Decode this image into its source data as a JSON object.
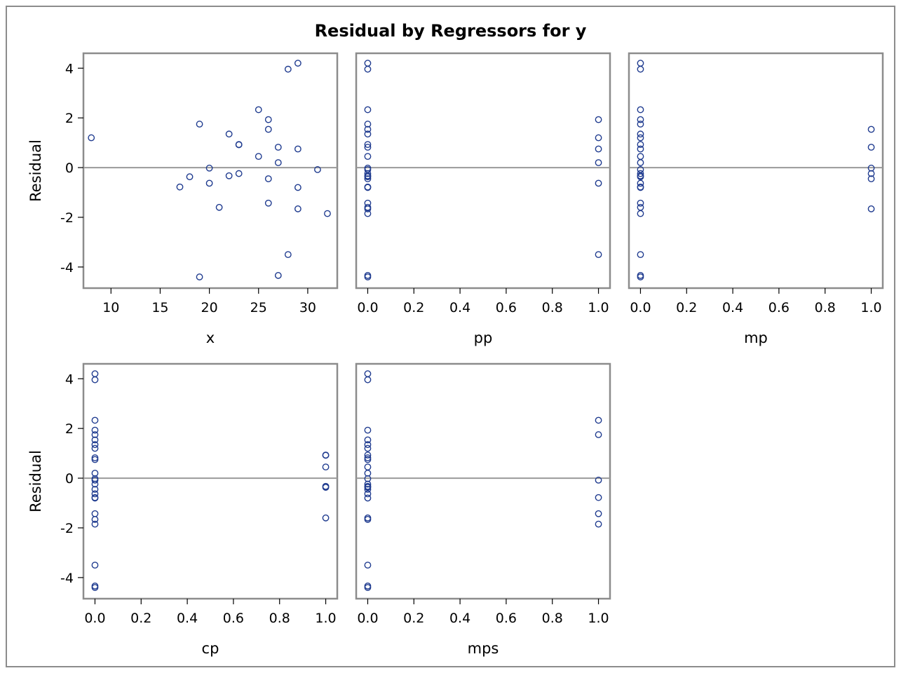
{
  "title": "Residual by Regressors for y",
  "colors": {
    "marker": "#1f3b8f",
    "frame": "#8c8c8c",
    "refline": "#9a9a9a"
  },
  "ylabel": "Residual",
  "chart_data": [
    {
      "type": "scatter",
      "xlabel": "x",
      "ylabel": "Residual",
      "xlim": [
        7.2,
        33
      ],
      "ylim": [
        -4.85,
        4.6
      ],
      "xticks": [
        10,
        15,
        20,
        25,
        30
      ],
      "xtick_labels": [
        "10",
        "15",
        "20",
        "25",
        "30"
      ],
      "yticks": [
        -4,
        -2,
        0,
        2,
        4
      ],
      "ytick_labels": [
        "-4",
        "-2",
        "0",
        "2",
        "4"
      ],
      "refline_y": 0,
      "points": [
        [
          8,
          1.2
        ],
        [
          17,
          -0.78
        ],
        [
          18,
          -0.37
        ],
        [
          19,
          1.75
        ],
        [
          19,
          -4.4
        ],
        [
          20,
          -0.02
        ],
        [
          20,
          -0.63
        ],
        [
          21,
          -1.6
        ],
        [
          22,
          1.35
        ],
        [
          22,
          -0.33
        ],
        [
          23,
          0.93
        ],
        [
          23,
          0.92
        ],
        [
          23,
          -0.24
        ],
        [
          25,
          2.33
        ],
        [
          25,
          0.45
        ],
        [
          26,
          1.93
        ],
        [
          26,
          1.54
        ],
        [
          26,
          -0.45
        ],
        [
          26,
          -1.43
        ],
        [
          27,
          0.82
        ],
        [
          27,
          0.2
        ],
        [
          27,
          -4.34
        ],
        [
          28,
          3.96
        ],
        [
          28,
          -3.5
        ],
        [
          29,
          4.2
        ],
        [
          29,
          0.75
        ],
        [
          29,
          -0.8
        ],
        [
          29,
          -1.66
        ],
        [
          31,
          -0.08
        ],
        [
          32,
          -1.85
        ]
      ]
    },
    {
      "type": "scatter",
      "xlabel": "pp",
      "ylabel": "",
      "xlim": [
        -0.05,
        1.05
      ],
      "ylim": [
        -4.85,
        4.6
      ],
      "xticks": [
        0,
        0.2,
        0.4,
        0.6,
        0.8,
        1.0
      ],
      "xtick_labels": [
        "0.0",
        "0.2",
        "0.4",
        "0.6",
        "0.8",
        "1.0"
      ],
      "yticks": [],
      "ytick_labels": [],
      "refline_y": 0,
      "points": [
        [
          0,
          4.2
        ],
        [
          0,
          3.96
        ],
        [
          0,
          2.33
        ],
        [
          0,
          1.75
        ],
        [
          0,
          1.54
        ],
        [
          0,
          1.35
        ],
        [
          0,
          0.93
        ],
        [
          0,
          0.82
        ],
        [
          0,
          0.45
        ],
        [
          0,
          -0.02
        ],
        [
          0,
          -0.08
        ],
        [
          0,
          -0.24
        ],
        [
          0,
          -0.33
        ],
        [
          0,
          -0.37
        ],
        [
          0,
          -0.45
        ],
        [
          0,
          -0.78
        ],
        [
          0,
          -0.8
        ],
        [
          0,
          -1.43
        ],
        [
          0,
          -1.6
        ],
        [
          0,
          -1.66
        ],
        [
          0,
          -1.85
        ],
        [
          0,
          -4.34
        ],
        [
          0,
          -4.4
        ],
        [
          1,
          1.93
        ],
        [
          1,
          1.2
        ],
        [
          1,
          0.75
        ],
        [
          1,
          0.2
        ],
        [
          1,
          -0.63
        ],
        [
          1,
          -3.5
        ]
      ]
    },
    {
      "type": "scatter",
      "xlabel": "mp",
      "ylabel": "",
      "xlim": [
        -0.05,
        1.05
      ],
      "ylim": [
        -4.85,
        4.6
      ],
      "xticks": [
        0,
        0.2,
        0.4,
        0.6,
        0.8,
        1.0
      ],
      "xtick_labels": [
        "0.0",
        "0.2",
        "0.4",
        "0.6",
        "0.8",
        "1.0"
      ],
      "yticks": [],
      "ytick_labels": [],
      "refline_y": 0,
      "points": [
        [
          0,
          4.2
        ],
        [
          0,
          3.96
        ],
        [
          0,
          2.33
        ],
        [
          0,
          1.93
        ],
        [
          0,
          1.75
        ],
        [
          0,
          1.35
        ],
        [
          0,
          1.2
        ],
        [
          0,
          0.93
        ],
        [
          0,
          0.75
        ],
        [
          0,
          0.45
        ],
        [
          0,
          0.2
        ],
        [
          0,
          -0.08
        ],
        [
          0,
          -0.24
        ],
        [
          0,
          -0.33
        ],
        [
          0,
          -0.37
        ],
        [
          0,
          -0.63
        ],
        [
          0,
          -0.78
        ],
        [
          0,
          -0.8
        ],
        [
          0,
          -1.43
        ],
        [
          0,
          -1.6
        ],
        [
          0,
          -1.85
        ],
        [
          0,
          -3.5
        ],
        [
          0,
          -4.34
        ],
        [
          0,
          -4.4
        ],
        [
          1,
          1.54
        ],
        [
          1,
          0.82
        ],
        [
          1,
          -0.02
        ],
        [
          1,
          -0.24
        ],
        [
          1,
          -0.45
        ],
        [
          1,
          -1.66
        ]
      ]
    },
    {
      "type": "scatter",
      "xlabel": "cp",
      "ylabel": "Residual",
      "xlim": [
        -0.05,
        1.05
      ],
      "ylim": [
        -4.85,
        4.6
      ],
      "xticks": [
        0,
        0.2,
        0.4,
        0.6,
        0.8,
        1.0
      ],
      "xtick_labels": [
        "0.0",
        "0.2",
        "0.4",
        "0.6",
        "0.8",
        "1.0"
      ],
      "yticks": [
        -4,
        -2,
        0,
        2,
        4
      ],
      "ytick_labels": [
        "-4",
        "-2",
        "0",
        "2",
        "4"
      ],
      "refline_y": 0,
      "points": [
        [
          0,
          4.2
        ],
        [
          0,
          3.96
        ],
        [
          0,
          2.33
        ],
        [
          0,
          1.93
        ],
        [
          0,
          1.75
        ],
        [
          0,
          1.54
        ],
        [
          0,
          1.35
        ],
        [
          0,
          1.2
        ],
        [
          0,
          0.82
        ],
        [
          0,
          0.75
        ],
        [
          0,
          0.2
        ],
        [
          0,
          -0.02
        ],
        [
          0,
          -0.08
        ],
        [
          0,
          -0.24
        ],
        [
          0,
          -0.45
        ],
        [
          0,
          -0.63
        ],
        [
          0,
          -0.78
        ],
        [
          0,
          -0.8
        ],
        [
          0,
          -1.43
        ],
        [
          0,
          -1.66
        ],
        [
          0,
          -1.85
        ],
        [
          0,
          -3.5
        ],
        [
          0,
          -4.34
        ],
        [
          0,
          -4.4
        ],
        [
          1,
          0.93
        ],
        [
          1,
          0.92
        ],
        [
          1,
          0.45
        ],
        [
          1,
          -0.33
        ],
        [
          1,
          -0.37
        ],
        [
          1,
          -1.6
        ]
      ]
    },
    {
      "type": "scatter",
      "xlabel": "mps",
      "ylabel": "",
      "xlim": [
        -0.05,
        1.05
      ],
      "ylim": [
        -4.85,
        4.6
      ],
      "xticks": [
        0,
        0.2,
        0.4,
        0.6,
        0.8,
        1.0
      ],
      "xtick_labels": [
        "0.0",
        "0.2",
        "0.4",
        "0.6",
        "0.8",
        "1.0"
      ],
      "yticks": [],
      "ytick_labels": [],
      "refline_y": 0,
      "points": [
        [
          0,
          4.2
        ],
        [
          0,
          3.96
        ],
        [
          0,
          1.93
        ],
        [
          0,
          1.54
        ],
        [
          0,
          1.35
        ],
        [
          0,
          1.2
        ],
        [
          0,
          0.93
        ],
        [
          0,
          0.82
        ],
        [
          0,
          0.75
        ],
        [
          0,
          0.45
        ],
        [
          0,
          0.2
        ],
        [
          0,
          -0.02
        ],
        [
          0,
          -0.24
        ],
        [
          0,
          -0.33
        ],
        [
          0,
          -0.37
        ],
        [
          0,
          -0.45
        ],
        [
          0,
          -0.63
        ],
        [
          0,
          -0.8
        ],
        [
          0,
          -1.6
        ],
        [
          0,
          -1.66
        ],
        [
          0,
          -3.5
        ],
        [
          0,
          -4.34
        ],
        [
          0,
          -4.4
        ],
        [
          1,
          2.33
        ],
        [
          1,
          1.75
        ],
        [
          1,
          -0.08
        ],
        [
          1,
          -0.78
        ],
        [
          1,
          -1.43
        ],
        [
          1,
          -1.85
        ]
      ]
    }
  ]
}
